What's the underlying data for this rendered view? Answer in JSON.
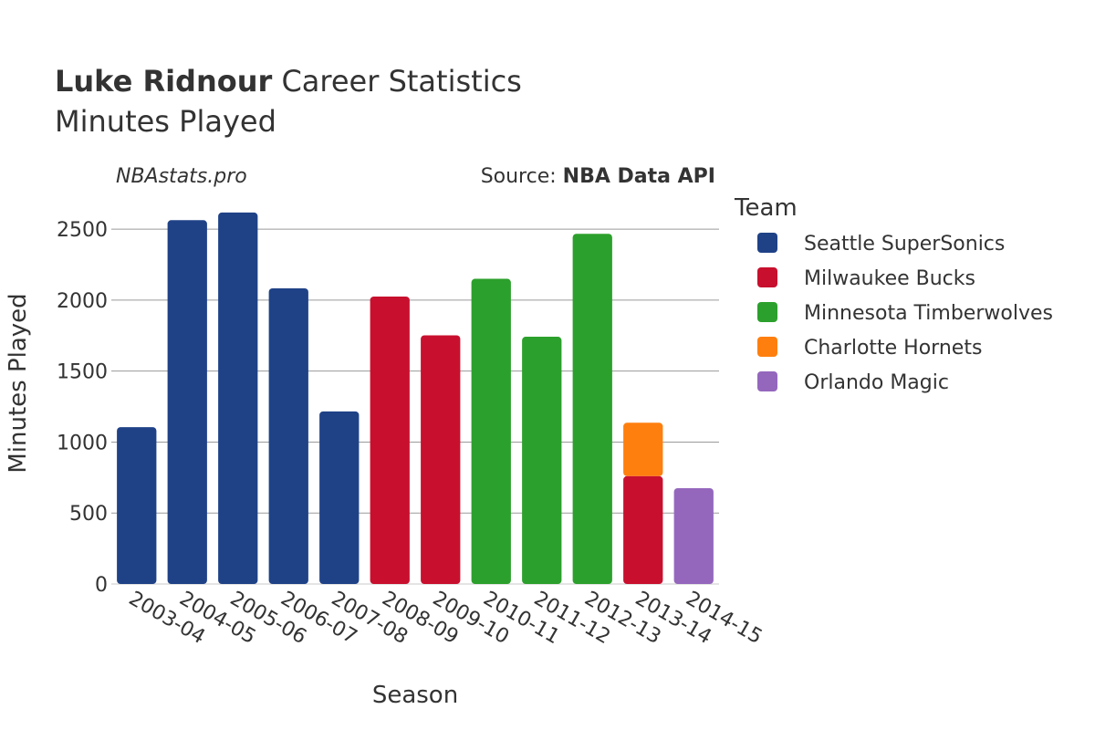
{
  "header": {
    "title_bold": "Luke Ridnour",
    "title_rest": " Career Statistics",
    "subtitle": "Minutes Played"
  },
  "credits": {
    "site": "NBAstats.pro",
    "source_prefix": "Source: ",
    "source_name": "NBA Data API"
  },
  "legend": {
    "title": "Team"
  },
  "chart_data": {
    "type": "bar",
    "stacked": true,
    "title": "Luke Ridnour Career Statistics",
    "subtitle": "Minutes Played",
    "xlabel": "Season",
    "ylabel": "Minutes Played",
    "ylim": [
      0,
      2700
    ],
    "yticks": [
      0,
      500,
      1000,
      1500,
      2000,
      2500
    ],
    "grid": true,
    "legend_position": "right",
    "categories": [
      "2003-04",
      "2004-05",
      "2005-06",
      "2006-07",
      "2007-08",
      "2008-09",
      "2009-10",
      "2010-11",
      "2011-12",
      "2012-13",
      "2013-14",
      "2014-15"
    ],
    "series": [
      {
        "name": "Seattle SuperSonics",
        "color": "#1f4287",
        "values": [
          1105,
          2563,
          2617,
          2083,
          1216,
          0,
          0,
          0,
          0,
          0,
          0,
          0
        ]
      },
      {
        "name": "Milwaukee Bucks",
        "color": "#c8102e",
        "values": [
          0,
          0,
          0,
          0,
          0,
          2025,
          1752,
          0,
          0,
          0,
          760,
          0
        ]
      },
      {
        "name": "Minnesota Timberwolves",
        "color": "#2ca02c",
        "values": [
          0,
          0,
          0,
          0,
          0,
          0,
          0,
          2150,
          1742,
          2467,
          0,
          0
        ]
      },
      {
        "name": "Charlotte Hornets",
        "color": "#ff7f0e",
        "values": [
          0,
          0,
          0,
          0,
          0,
          0,
          0,
          0,
          0,
          0,
          376,
          0
        ]
      },
      {
        "name": "Orlando Magic",
        "color": "#9467bd",
        "values": [
          0,
          0,
          0,
          0,
          0,
          0,
          0,
          0,
          0,
          0,
          0,
          675
        ]
      }
    ]
  }
}
